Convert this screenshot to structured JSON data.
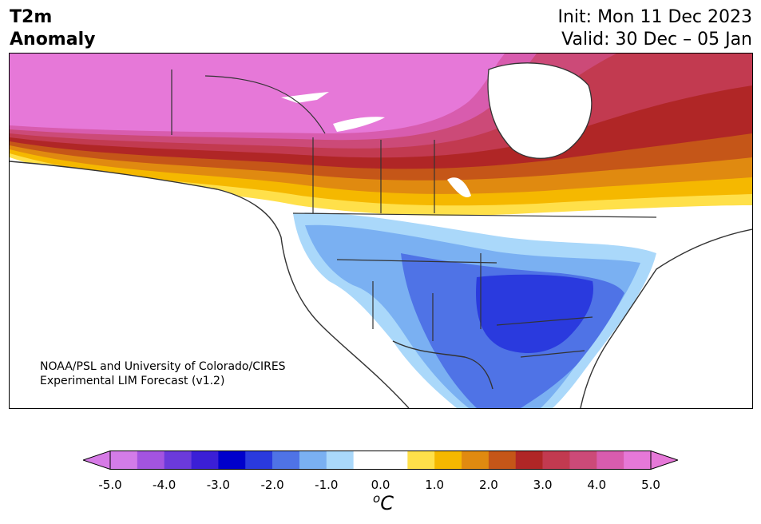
{
  "header": {
    "variable_line1": "T2m",
    "variable_line2": "Anomaly",
    "init_line": "Init: Mon 11 Dec 2023",
    "valid_line": "Valid: 30 Dec – 05 Jan"
  },
  "credit": {
    "line1": "NOAA/PSL and University of Colorado/CIRES",
    "line2": "Experimental LIM Forecast (v1.2)"
  },
  "colorbar": {
    "unit_base": "C",
    "unit_sup": "o",
    "ticks": [
      "-5.0",
      "-4.0",
      "-3.0",
      "-2.0",
      "-1.0",
      "0.0",
      "1.0",
      "2.0",
      "3.0",
      "4.0",
      "5.0"
    ],
    "colors": [
      "#d37ce8",
      "#a354e0",
      "#6b3adb",
      "#3b1fd6",
      "#0000cc",
      "#2a3ade",
      "#4f73e6",
      "#7ab0f2",
      "#aad8fa",
      "#ffffff",
      "#ffffff",
      "#ffe04a",
      "#f5b800",
      "#e08a10",
      "#c55618",
      "#b02626",
      "#c23a50",
      "#cc4a78",
      "#d85cae",
      "#e678d8"
    ],
    "under_color": "#d67ae6",
    "over_color": "#e678d8"
  }
}
